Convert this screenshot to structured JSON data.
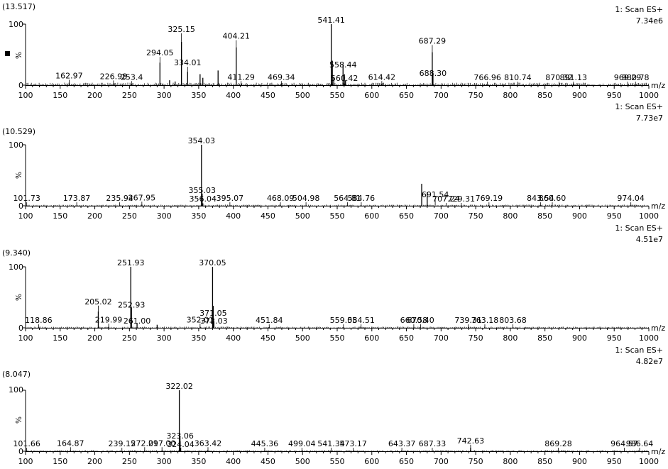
{
  "chart_data": [
    {
      "type": "bar",
      "subtype": "mass-spectrum",
      "retention_time": "(13.517)",
      "scan_label": "1: Scan ES+",
      "intensity": "7.34e6",
      "xlabel": "m/z",
      "ylabel": "%",
      "xlim": [
        100,
        1000
      ],
      "ylim": [
        0,
        100
      ],
      "yticks": [
        0,
        100
      ],
      "xticks": [
        100,
        150,
        200,
        250,
        300,
        350,
        400,
        450,
        500,
        550,
        600,
        650,
        700,
        750,
        800,
        850,
        900,
        950,
        1000
      ],
      "show_marker": true,
      "labels": [
        {
          "text": "162.97",
          "x": 162.97
        },
        {
          "text": "226.98",
          "x": 226.98
        },
        {
          "text": "253.4",
          "x": 253.4
        },
        {
          "text": "294.05",
          "x": 294.05
        },
        {
          "text": "325.15",
          "x": 325.15
        },
        {
          "text": "334.01",
          "x": 334.01
        },
        {
          "text": "404.21",
          "x": 404.21
        },
        {
          "text": "411.29",
          "x": 411.29
        },
        {
          "text": "469.34",
          "x": 469.34
        },
        {
          "text": "541.41",
          "x": 541.41
        },
        {
          "text": "558.44",
          "x": 558.44
        },
        {
          "text": "560.42",
          "x": 560.42
        },
        {
          "text": "614.42",
          "x": 614.42
        },
        {
          "text": "687.29",
          "x": 687.29
        },
        {
          "text": "688.30",
          "x": 688.3
        },
        {
          "text": "766.96",
          "x": 766.96
        },
        {
          "text": "810.74",
          "x": 810.74
        },
        {
          "text": "870.32",
          "x": 870.32
        },
        {
          "text": "891.13",
          "x": 891.13
        },
        {
          "text": "969.29",
          "x": 969.29
        },
        {
          "text": "980.78",
          "x": 980.78
        }
      ],
      "peaks": [
        {
          "x": 162.97,
          "y": 4
        },
        {
          "x": 226.98,
          "y": 3
        },
        {
          "x": 253.4,
          "y": 2
        },
        {
          "x": 294.05,
          "y": 37
        },
        {
          "x": 308,
          "y": 8
        },
        {
          "x": 316,
          "y": 6
        },
        {
          "x": 325.15,
          "y": 71
        },
        {
          "x": 334.01,
          "y": 22
        },
        {
          "x": 352,
          "y": 18
        },
        {
          "x": 356,
          "y": 12
        },
        {
          "x": 378,
          "y": 24
        },
        {
          "x": 404.21,
          "y": 62
        },
        {
          "x": 411.29,
          "y": 2
        },
        {
          "x": 469.34,
          "y": 2
        },
        {
          "x": 541.41,
          "y": 100
        },
        {
          "x": 543,
          "y": 40
        },
        {
          "x": 545,
          "y": 14
        },
        {
          "x": 558.44,
          "y": 34
        },
        {
          "x": 560.42,
          "y": 18
        },
        {
          "x": 562,
          "y": 8
        },
        {
          "x": 614.42,
          "y": 2
        },
        {
          "x": 687.29,
          "y": 54
        },
        {
          "x": 688.3,
          "y": 20
        },
        {
          "x": 766.96,
          "y": 1
        },
        {
          "x": 810.74,
          "y": 1
        },
        {
          "x": 870.32,
          "y": 1
        },
        {
          "x": 891.13,
          "y": 1
        },
        {
          "x": 969.29,
          "y": 1
        },
        {
          "x": 980.78,
          "y": 1
        }
      ]
    },
    {
      "type": "bar",
      "subtype": "mass-spectrum",
      "retention_time": "(10.529)",
      "scan_label": "1: Scan ES+",
      "intensity": "7.73e7",
      "xlabel": "m/z",
      "ylabel": "%",
      "xlim": [
        100,
        1000
      ],
      "ylim": [
        0,
        100
      ],
      "yticks": [
        0,
        100
      ],
      "xticks": [
        100,
        150,
        200,
        250,
        300,
        350,
        400,
        450,
        500,
        550,
        600,
        650,
        700,
        750,
        800,
        850,
        900,
        950,
        1000
      ],
      "show_marker": false,
      "labels": [
        {
          "text": "101.73",
          "x": 101.73
        },
        {
          "text": "173.87",
          "x": 173.87
        },
        {
          "text": "235.94",
          "x": 235.94
        },
        {
          "text": "267.95",
          "x": 267.95
        },
        {
          "text": "354.03",
          "x": 354.03
        },
        {
          "text": "355.03",
          "x": 355.03
        },
        {
          "text": "356.04",
          "x": 356.04
        },
        {
          "text": "395.07",
          "x": 395.07
        },
        {
          "text": "468.09",
          "x": 468.09
        },
        {
          "text": "504.98",
          "x": 504.98
        },
        {
          "text": "564.81",
          "x": 564.81
        },
        {
          "text": "584.76",
          "x": 584.76
        },
        {
          "text": "691.54",
          "x": 691.54
        },
        {
          "text": "707.24",
          "x": 707.24
        },
        {
          "text": "729.31",
          "x": 729.31
        },
        {
          "text": "769.19",
          "x": 769.19
        },
        {
          "text": "843.54",
          "x": 843.54
        },
        {
          "text": "860.60",
          "x": 860.6
        },
        {
          "text": "974.04",
          "x": 974.04
        }
      ],
      "peaks": [
        {
          "x": 101.73,
          "y": 1
        },
        {
          "x": 173.87,
          "y": 1
        },
        {
          "x": 235.94,
          "y": 1
        },
        {
          "x": 267.95,
          "y": 2
        },
        {
          "x": 354.03,
          "y": 100
        },
        {
          "x": 355.03,
          "y": 20
        },
        {
          "x": 356.04,
          "y": 4
        },
        {
          "x": 395.07,
          "y": 1
        },
        {
          "x": 468.09,
          "y": 1
        },
        {
          "x": 504.98,
          "y": 1
        },
        {
          "x": 564.81,
          "y": 1
        },
        {
          "x": 584.76,
          "y": 1
        },
        {
          "x": 672,
          "y": 36
        },
        {
          "x": 680,
          "y": 22
        },
        {
          "x": 729.31,
          "y": 1
        },
        {
          "x": 769.19,
          "y": 1
        },
        {
          "x": 843.54,
          "y": 1
        },
        {
          "x": 860.6,
          "y": 1
        },
        {
          "x": 974.04,
          "y": 1
        }
      ]
    },
    {
      "type": "bar",
      "subtype": "mass-spectrum",
      "retention_time": "(9.340)",
      "scan_label": "1: Scan ES+",
      "intensity": "4.51e7",
      "xlabel": "m/z",
      "ylabel": "%",
      "xlim": [
        100,
        1000
      ],
      "ylim": [
        0,
        100
      ],
      "yticks": [
        0,
        100
      ],
      "xticks": [
        100,
        150,
        200,
        250,
        300,
        350,
        400,
        450,
        500,
        550,
        600,
        650,
        700,
        750,
        800,
        850,
        900,
        950,
        1000
      ],
      "show_marker": false,
      "labels": [
        {
          "text": "118.86",
          "x": 118.86
        },
        {
          "text": "205.02",
          "x": 205.02
        },
        {
          "text": "219.99",
          "x": 219.99
        },
        {
          "text": "251.93",
          "x": 251.93
        },
        {
          "text": "252.93",
          "x": 252.93
        },
        {
          "text": "261.00",
          "x": 261.0
        },
        {
          "text": "352.01",
          "x": 352.01
        },
        {
          "text": "370.05",
          "x": 370.05
        },
        {
          "text": "371.05",
          "x": 371.05
        },
        {
          "text": "372.03",
          "x": 372.03
        },
        {
          "text": "451.84",
          "x": 451.84
        },
        {
          "text": "559.05",
          "x": 559.05
        },
        {
          "text": "584.51",
          "x": 584.51
        },
        {
          "text": "660.58",
          "x": 660.58
        },
        {
          "text": "670.40",
          "x": 670.4
        },
        {
          "text": "739.31",
          "x": 739.31
        },
        {
          "text": "763.18",
          "x": 763.18
        },
        {
          "text": "803.68",
          "x": 803.68
        }
      ],
      "peaks": [
        {
          "x": 118.86,
          "y": 1
        },
        {
          "x": 205.02,
          "y": 27
        },
        {
          "x": 219.99,
          "y": 2
        },
        {
          "x": 251.93,
          "y": 100
        },
        {
          "x": 252.93,
          "y": 33
        },
        {
          "x": 261.0,
          "y": 7
        },
        {
          "x": 290,
          "y": 5
        },
        {
          "x": 352.01,
          "y": 2
        },
        {
          "x": 370.05,
          "y": 100
        },
        {
          "x": 371.05,
          "y": 36
        },
        {
          "x": 372.03,
          "y": 11
        },
        {
          "x": 451.84,
          "y": 1
        },
        {
          "x": 559.05,
          "y": 1
        },
        {
          "x": 584.51,
          "y": 1
        },
        {
          "x": 660.58,
          "y": 1
        },
        {
          "x": 670.4,
          "y": 1
        },
        {
          "x": 739.31,
          "y": 1
        },
        {
          "x": 763.18,
          "y": 1
        },
        {
          "x": 803.68,
          "y": 1
        }
      ]
    },
    {
      "type": "bar",
      "subtype": "mass-spectrum",
      "retention_time": "(8.047)",
      "scan_label": "1: Scan ES+",
      "intensity": "4.82e7",
      "xlabel": "m/z",
      "ylabel": "%",
      "xlim": [
        100,
        1000
      ],
      "ylim": [
        0,
        100
      ],
      "yticks": [
        0,
        100
      ],
      "xticks": [
        100,
        150,
        200,
        250,
        300,
        350,
        400,
        450,
        500,
        550,
        600,
        650,
        700,
        750,
        800,
        850,
        900,
        950,
        1000
      ],
      "show_marker": false,
      "labels": [
        {
          "text": "101.66",
          "x": 101.66
        },
        {
          "text": "164.87",
          "x": 164.87
        },
        {
          "text": "239.15",
          "x": 239.15
        },
        {
          "text": "272.01",
          "x": 272.01
        },
        {
          "text": "297.00",
          "x": 297.0
        },
        {
          "text": "322.02",
          "x": 322.02
        },
        {
          "text": "323.06",
          "x": 323.06
        },
        {
          "text": "324.04",
          "x": 324.04
        },
        {
          "text": "363.42",
          "x": 363.42
        },
        {
          "text": "445.36",
          "x": 445.36
        },
        {
          "text": "499.04",
          "x": 499.04
        },
        {
          "text": "541.34",
          "x": 541.34
        },
        {
          "text": "573.17",
          "x": 573.17
        },
        {
          "text": "643.37",
          "x": 643.37
        },
        {
          "text": "687.33",
          "x": 687.33
        },
        {
          "text": "742.63",
          "x": 742.63
        },
        {
          "text": "869.28",
          "x": 869.28
        },
        {
          "text": "964.57",
          "x": 964.57
        },
        {
          "text": "986.64",
          "x": 986.64
        }
      ],
      "peaks": [
        {
          "x": 101.66,
          "y": 1
        },
        {
          "x": 164.87,
          "y": 2
        },
        {
          "x": 239.15,
          "y": 1
        },
        {
          "x": 272.01,
          "y": 2
        },
        {
          "x": 297.0,
          "y": 2
        },
        {
          "x": 322.02,
          "y": 100
        },
        {
          "x": 323.06,
          "y": 22
        },
        {
          "x": 324.04,
          "y": 6
        },
        {
          "x": 363.42,
          "y": 2
        },
        {
          "x": 445.36,
          "y": 1
        },
        {
          "x": 499.04,
          "y": 1
        },
        {
          "x": 541.34,
          "y": 1
        },
        {
          "x": 573.17,
          "y": 1
        },
        {
          "x": 643.37,
          "y": 1
        },
        {
          "x": 687.33,
          "y": 1
        },
        {
          "x": 742.63,
          "y": 6
        },
        {
          "x": 869.28,
          "y": 1
        },
        {
          "x": 964.57,
          "y": 1
        },
        {
          "x": 986.64,
          "y": 1
        }
      ]
    }
  ]
}
